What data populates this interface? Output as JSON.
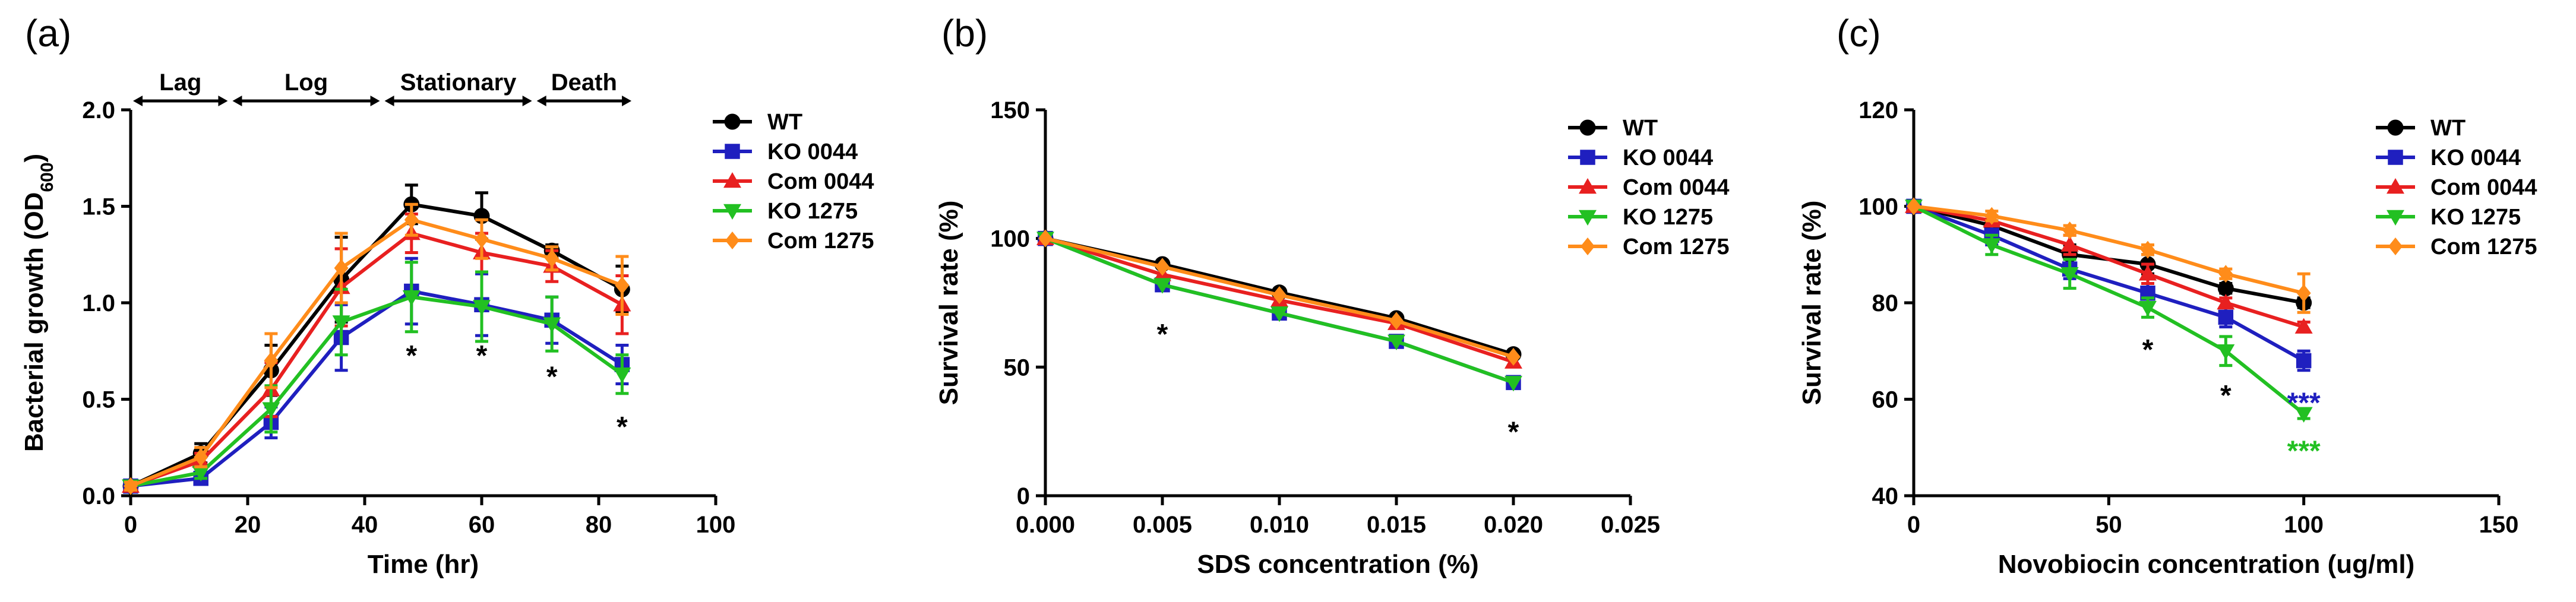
{
  "chart_data": [
    {
      "panel": "(a)",
      "type": "line",
      "xlabel": "Time (hr)",
      "ylabel": "Bacterial growth (OD600)",
      "ylabel_main": "Bacterial growth (OD",
      "ylabel_sub": "600",
      "ylabel_end": ")",
      "xlim": [
        0,
        100
      ],
      "ylim": [
        0,
        2.0
      ],
      "xticks": [
        0,
        20,
        40,
        60,
        80,
        100
      ],
      "xtick_labels": [
        "0",
        "20",
        "40",
        "60",
        "80",
        "100"
      ],
      "yticks": [
        0,
        0.5,
        1.0,
        1.5,
        2.0
      ],
      "ytick_labels": [
        "0.0",
        "0.5",
        "1.0",
        "1.5",
        "2.0"
      ],
      "legend_position": "right",
      "x": [
        0,
        12,
        24,
        36,
        48,
        60,
        72,
        84
      ],
      "series": [
        {
          "name": "WT",
          "color": "#000000",
          "marker": "circle",
          "values": [
            0.05,
            0.22,
            0.65,
            1.12,
            1.51,
            1.45,
            1.27,
            1.07
          ],
          "errors": [
            0.02,
            0.05,
            0.13,
            0.22,
            0.1,
            0.12,
            0.03,
            0.12
          ]
        },
        {
          "name": "KO 0044",
          "color": "#1f1fbf",
          "marker": "square",
          "values": [
            0.05,
            0.09,
            0.38,
            0.82,
            1.06,
            0.99,
            0.91,
            0.68
          ],
          "errors": [
            0.02,
            0.03,
            0.08,
            0.17,
            0.17,
            0.16,
            0.12,
            0.1
          ]
        },
        {
          "name": "Com 0044",
          "color": "#e82020",
          "marker": "triangle-up",
          "values": [
            0.05,
            0.18,
            0.55,
            1.08,
            1.36,
            1.26,
            1.19,
            0.99
          ],
          "errors": [
            0.02,
            0.04,
            0.14,
            0.2,
            0.1,
            0.1,
            0.08,
            0.15
          ]
        },
        {
          "name": "KO 1275",
          "color": "#22c022",
          "marker": "triangle-down",
          "values": [
            0.05,
            0.12,
            0.45,
            0.9,
            1.03,
            0.98,
            0.89,
            0.63
          ],
          "errors": [
            0.02,
            0.03,
            0.12,
            0.17,
            0.18,
            0.18,
            0.14,
            0.1
          ]
        },
        {
          "name": "Com 1275",
          "color": "#ff8c1a",
          "marker": "diamond",
          "values": [
            0.05,
            0.2,
            0.7,
            1.18,
            1.43,
            1.33,
            1.23,
            1.09
          ],
          "errors": [
            0.02,
            0.05,
            0.14,
            0.18,
            0.08,
            0.1,
            0.06,
            0.15
          ]
        }
      ],
      "phases": [
        {
          "label": "Lag",
          "start": 0,
          "end": 17
        },
        {
          "label": "Log",
          "start": 17,
          "end": 43
        },
        {
          "label": "Stationary",
          "start": 43,
          "end": 69
        },
        {
          "label": "Death",
          "start": 69,
          "end": 86
        }
      ],
      "annotations": [
        {
          "text": "*",
          "x": 48,
          "y": 0.77
        },
        {
          "text": "*",
          "x": 60,
          "y": 0.77
        },
        {
          "text": "*",
          "x": 72,
          "y": 0.66
        },
        {
          "text": "*",
          "x": 84,
          "y": 0.4
        }
      ]
    },
    {
      "panel": "(b)",
      "type": "line",
      "xlabel": "SDS concentration (%)",
      "ylabel": "Survival rate (%)",
      "xlim": [
        0,
        0.025
      ],
      "ylim": [
        0,
        150
      ],
      "xticks": [
        0,
        0.005,
        0.01,
        0.015,
        0.02,
        0.025
      ],
      "xtick_labels": [
        "0.000",
        "0.005",
        "0.010",
        "0.015",
        "0.020",
        "0.025"
      ],
      "yticks": [
        0,
        50,
        100,
        150
      ],
      "ytick_labels": [
        "0",
        "50",
        "100",
        "150"
      ],
      "legend_position": "top-right",
      "x": [
        0,
        0.005,
        0.01,
        0.015,
        0.02
      ],
      "series": [
        {
          "name": "WT",
          "color": "#000000",
          "marker": "circle",
          "values": [
            100,
            90,
            79,
            69,
            55
          ]
        },
        {
          "name": "KO 0044",
          "color": "#1f1fbf",
          "marker": "square",
          "values": [
            100,
            82,
            71,
            60,
            44
          ]
        },
        {
          "name": "Com 0044",
          "color": "#e82020",
          "marker": "triangle-up",
          "values": [
            100,
            86,
            76,
            67,
            52
          ]
        },
        {
          "name": "KO 1275",
          "color": "#22c022",
          "marker": "triangle-down",
          "values": [
            100,
            82,
            71,
            60,
            44
          ]
        },
        {
          "name": "Com 1275",
          "color": "#ff8c1a",
          "marker": "diamond",
          "values": [
            100,
            89,
            78,
            68,
            54
          ]
        }
      ],
      "annotations": [
        {
          "text": "*",
          "x": 0.005,
          "y": 66
        },
        {
          "text": "*",
          "x": 0.02,
          "y": 28
        }
      ]
    },
    {
      "panel": "(c)",
      "type": "line",
      "xlabel": "Novobiocin concentration (ug/ml)",
      "ylabel": "Survival rate (%)",
      "xlim": [
        0,
        150
      ],
      "ylim": [
        40,
        120
      ],
      "xticks": [
        0,
        50,
        100,
        150
      ],
      "xtick_labels": [
        "0",
        "50",
        "100",
        "150"
      ],
      "yticks": [
        40,
        60,
        80,
        100,
        120
      ],
      "ytick_labels": [
        "40",
        "60",
        "80",
        "100",
        "120"
      ],
      "legend_position": "top-right",
      "x": [
        0,
        20,
        40,
        60,
        80,
        100
      ],
      "series": [
        {
          "name": "WT",
          "color": "#000000",
          "marker": "circle",
          "values": [
            100,
            96,
            90,
            88,
            83,
            80
          ],
          "errors": [
            0,
            1,
            2,
            2,
            1,
            1
          ]
        },
        {
          "name": "KO 0044",
          "color": "#1f1fbf",
          "marker": "square",
          "values": [
            100,
            94,
            87,
            82,
            77,
            68
          ],
          "errors": [
            0,
            2,
            2,
            2,
            2,
            2
          ]
        },
        {
          "name": "Com 0044",
          "color": "#e82020",
          "marker": "triangle-up",
          "values": [
            100,
            97,
            92,
            86,
            80,
            75
          ],
          "errors": [
            0,
            1,
            2,
            2,
            1,
            1
          ]
        },
        {
          "name": "KO 1275",
          "color": "#22c022",
          "marker": "triangle-down",
          "values": [
            100,
            92,
            86,
            79,
            70,
            57
          ],
          "errors": [
            0,
            2,
            3,
            2,
            3,
            1
          ]
        },
        {
          "name": "Com 1275",
          "color": "#ff8c1a",
          "marker": "diamond",
          "values": [
            100,
            98,
            95,
            91,
            86,
            82
          ],
          "errors": [
            0,
            1,
            1,
            1,
            1,
            4
          ]
        }
      ],
      "annotations": [
        {
          "text": "*",
          "x": 60,
          "y": 72,
          "color": "#000000"
        },
        {
          "text": "*",
          "x": 80,
          "y": 62.5,
          "color": "#000000"
        },
        {
          "text": "***",
          "x": 100,
          "y": 61,
          "color": "#1f1fbf"
        },
        {
          "text": "***",
          "x": 100,
          "y": 51,
          "color": "#22c022"
        }
      ]
    }
  ]
}
